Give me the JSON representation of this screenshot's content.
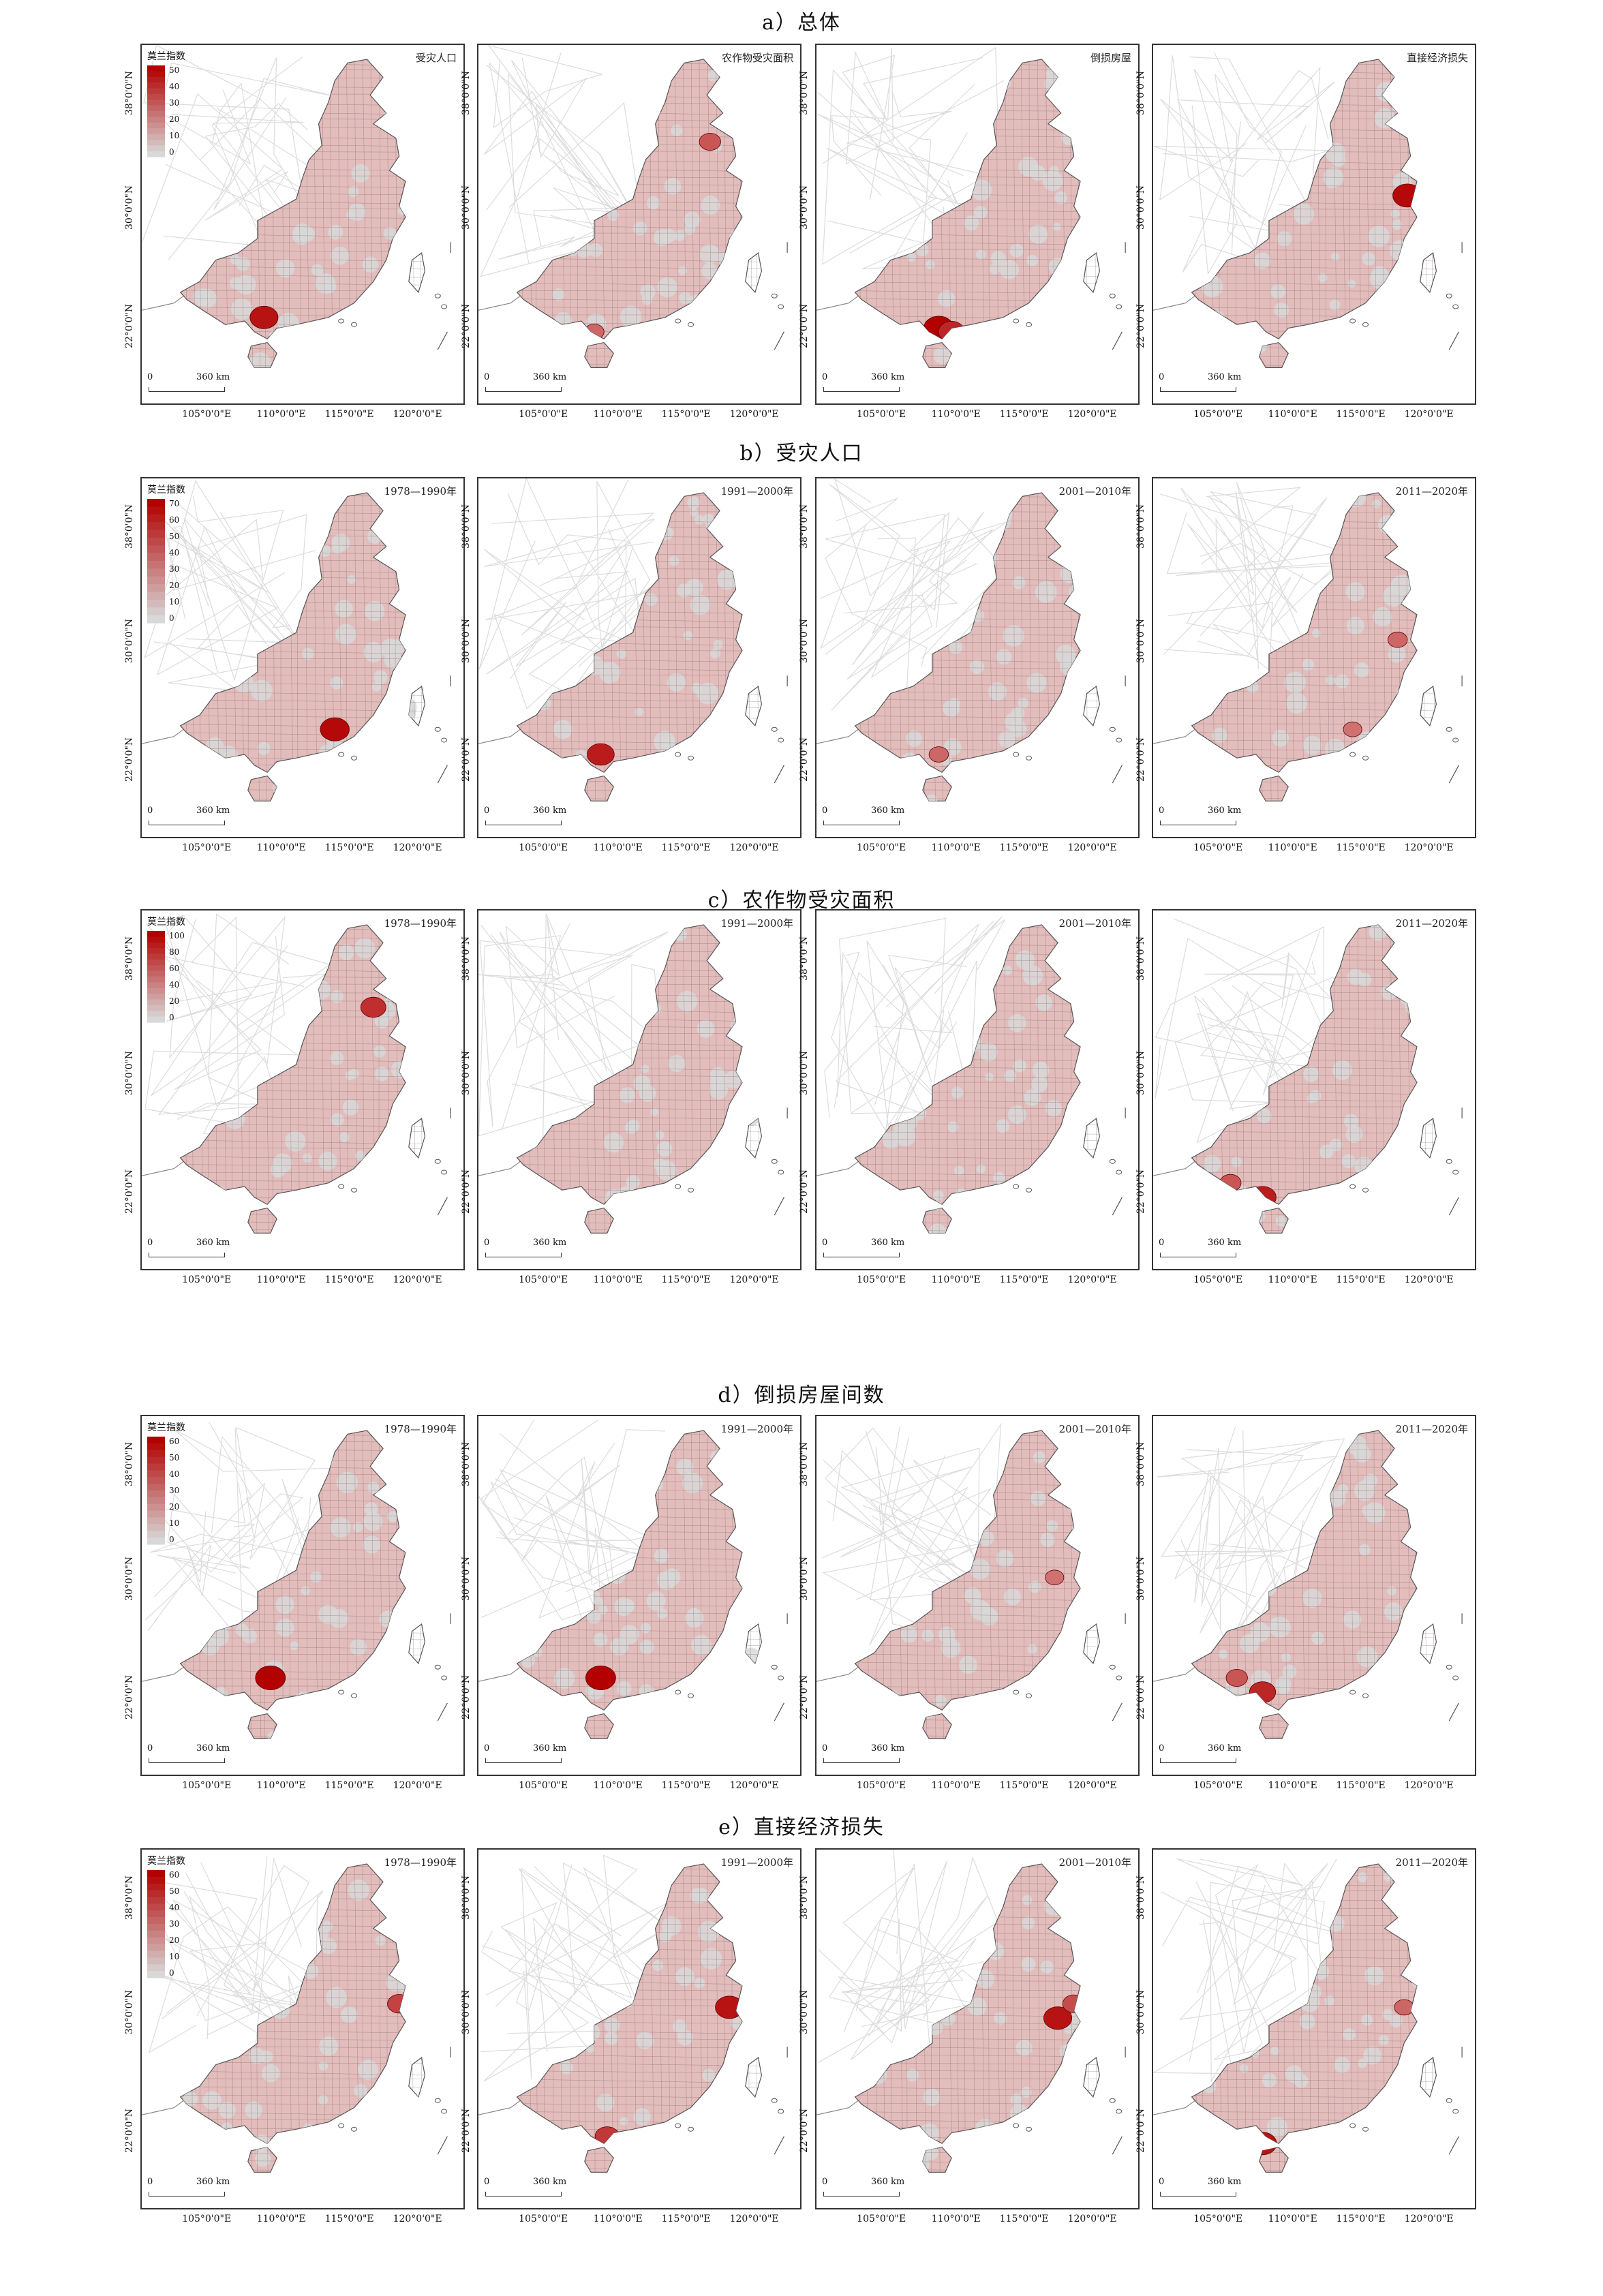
{
  "sections": [
    {
      "title": "a）总体",
      "legend": {
        "title": "莫兰指数",
        "ticks": [
          "50",
          "40",
          "30",
          "20",
          "10",
          "0"
        ]
      },
      "panels": [
        {
          "label": "受灾人口",
          "hotspots": [
            [
              0.38,
              0.76,
              0.9
            ]
          ]
        },
        {
          "label": "农作物受灾面积",
          "hotspots": [
            [
              0.72,
              0.27,
              0.55
            ],
            [
              0.36,
              0.8,
              0.45
            ]
          ]
        },
        {
          "label": "倒损房屋",
          "hotspots": [
            [
              0.38,
              0.79,
              1.0
            ],
            [
              0.42,
              0.8,
              0.8
            ]
          ]
        },
        {
          "label": "直接经济损失",
          "hotspots": [
            [
              0.79,
              0.42,
              0.95
            ]
          ]
        }
      ]
    },
    {
      "title": "b）受灾人口",
      "legend": {
        "title": "莫兰指数",
        "ticks": [
          "70",
          "60",
          "50",
          "40",
          "30",
          "20",
          "10",
          "0"
        ]
      },
      "panels": [
        {
          "label": "1978—1990年",
          "hotspots": [
            [
              0.6,
              0.7,
              0.95
            ]
          ]
        },
        {
          "label": "1991—2000年",
          "hotspots": [
            [
              0.38,
              0.77,
              0.85
            ]
          ]
        },
        {
          "label": "2001—2010年",
          "hotspots": [
            [
              0.38,
              0.77,
              0.45
            ]
          ]
        },
        {
          "label": "2011—2020年",
          "hotspots": [
            [
              0.76,
              0.45,
              0.45
            ],
            [
              0.62,
              0.7,
              0.4
            ]
          ]
        }
      ]
    },
    {
      "title": "c）农作物受灾面积",
      "legend": {
        "title": "莫兰指数",
        "ticks": [
          "100",
          "80",
          "60",
          "40",
          "20",
          "0"
        ]
      },
      "panels": [
        {
          "label": "1978—1990年",
          "hotspots": [
            [
              0.72,
              0.27,
              0.75
            ]
          ]
        },
        {
          "label": "1991—2000年",
          "hotspots": []
        },
        {
          "label": "2001—2010年",
          "hotspots": []
        },
        {
          "label": "2011—2020年",
          "hotspots": [
            [
              0.34,
              0.8,
              0.85
            ],
            [
              0.24,
              0.76,
              0.55
            ]
          ]
        }
      ]
    },
    {
      "title": "d）倒损房屋间数",
      "legend": {
        "title": "莫兰指数",
        "ticks": [
          "60",
          "50",
          "40",
          "30",
          "20",
          "10",
          "0"
        ]
      },
      "panels": [
        {
          "label": "1978—1990年",
          "hotspots": [
            [
              0.4,
              0.73,
              1.0
            ]
          ]
        },
        {
          "label": "1991—2000年",
          "hotspots": [
            [
              0.38,
              0.73,
              1.0
            ]
          ]
        },
        {
          "label": "2001—2010年",
          "hotspots": [
            [
              0.74,
              0.45,
              0.4
            ]
          ]
        },
        {
          "label": "2011—2020年",
          "hotspots": [
            [
              0.34,
              0.77,
              0.8
            ],
            [
              0.26,
              0.73,
              0.55
            ]
          ]
        }
      ]
    },
    {
      "title": "e）直接经济损失",
      "legend": {
        "title": "莫兰指数",
        "ticks": [
          "60",
          "50",
          "40",
          "30",
          "20",
          "10",
          "0"
        ]
      },
      "panels": [
        {
          "label": "1978—1990年",
          "hotspots": [
            [
              0.8,
              0.43,
              0.65
            ]
          ]
        },
        {
          "label": "1991—2000年",
          "hotspots": [
            [
              0.78,
              0.44,
              0.9
            ],
            [
              0.4,
              0.8,
              0.7
            ]
          ]
        },
        {
          "label": "2001—2010年",
          "hotspots": [
            [
              0.75,
              0.47,
              0.9
            ],
            [
              0.8,
              0.43,
              0.6
            ]
          ]
        },
        {
          "label": "2011—2020年",
          "hotspots": [
            [
              0.34,
              0.82,
              0.9
            ],
            [
              0.78,
              0.44,
              0.45
            ]
          ]
        }
      ]
    }
  ],
  "axes": {
    "lat_labels": [
      "38°0'0\"N",
      "30°0'0\"N",
      "22°0'0\"N"
    ],
    "lon_labels": [
      "105°0'0\"E",
      "110°0'0\"E",
      "115°0'0\"E",
      "120°0'0\"E"
    ]
  },
  "scalebar": {
    "zero": "0",
    "distance": "360 km"
  },
  "colors": {
    "base": "#e3bcbc",
    "hot": "#b30000",
    "low": "#d8d8d8",
    "border": "#555555",
    "outline": "#dcdcdc"
  }
}
